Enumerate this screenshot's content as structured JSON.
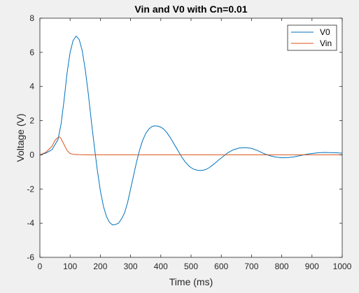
{
  "chart_data": {
    "type": "line",
    "title": "Vin and V0 with Cn=0.01",
    "xlabel": "Time (ms)",
    "ylabel": "Voltage (V)",
    "xlim": [
      0,
      1000
    ],
    "ylim": [
      -6,
      8
    ],
    "xticks": [
      0,
      100,
      200,
      300,
      400,
      500,
      600,
      700,
      800,
      900,
      1000
    ],
    "yticks": [
      -6,
      -4,
      -2,
      0,
      2,
      4,
      6,
      8
    ],
    "grid": false,
    "legend": "top-right",
    "series": [
      {
        "name": "V0",
        "color": "#0072bd",
        "x": [
          0,
          20,
          40,
          60,
          70,
          80,
          90,
          100,
          110,
          120,
          130,
          140,
          150,
          160,
          170,
          180,
          190,
          200,
          210,
          220,
          230,
          240,
          250,
          260,
          270,
          280,
          290,
          300,
          310,
          320,
          330,
          340,
          350,
          360,
          370,
          380,
          390,
          400,
          410,
          420,
          430,
          440,
          450,
          460,
          470,
          480,
          490,
          500,
          510,
          520,
          530,
          540,
          550,
          560,
          570,
          580,
          590,
          600,
          620,
          640,
          660,
          680,
          700,
          720,
          740,
          760,
          780,
          800,
          820,
          840,
          860,
          880,
          900,
          920,
          940,
          960,
          980,
          1000
        ],
        "y": [
          0,
          0.1,
          0.3,
          0.9,
          1.8,
          3.2,
          4.8,
          6.0,
          6.7,
          6.95,
          6.75,
          6.1,
          5.0,
          3.6,
          2.0,
          0.5,
          -0.9,
          -2.1,
          -3.0,
          -3.6,
          -3.95,
          -4.1,
          -4.08,
          -4.0,
          -3.75,
          -3.4,
          -2.8,
          -2.0,
          -1.2,
          -0.4,
          0.3,
          0.85,
          1.25,
          1.5,
          1.65,
          1.7,
          1.68,
          1.62,
          1.5,
          1.3,
          1.05,
          0.75,
          0.45,
          0.15,
          -0.15,
          -0.4,
          -0.6,
          -0.75,
          -0.85,
          -0.9,
          -0.92,
          -0.9,
          -0.85,
          -0.75,
          -0.62,
          -0.48,
          -0.32,
          -0.18,
          0.1,
          0.3,
          0.4,
          0.42,
          0.38,
          0.25,
          0.08,
          -0.05,
          -0.13,
          -0.17,
          -0.16,
          -0.12,
          -0.05,
          0.03,
          0.08,
          0.12,
          0.14,
          0.13,
          0.12,
          0.1
        ]
      },
      {
        "name": "Vin",
        "color": "#d95319",
        "x": [
          0,
          20,
          40,
          50,
          60,
          65,
          70,
          80,
          90,
          100,
          110,
          120,
          130,
          150,
          200,
          300,
          400,
          500,
          600,
          700,
          800,
          900,
          1000
        ],
        "y": [
          0,
          0.15,
          0.5,
          0.85,
          1.02,
          1.05,
          0.95,
          0.6,
          0.25,
          0.08,
          0.03,
          0.02,
          0.01,
          0,
          0,
          0,
          0,
          0,
          0,
          0,
          0,
          0,
          0
        ]
      }
    ]
  }
}
